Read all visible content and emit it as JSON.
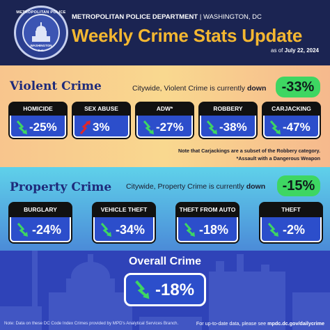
{
  "header": {
    "badge_top": "METROPOLITAN POLICE",
    "badge_mid": "WASHINGTON",
    "badge_bot": "D.C.",
    "department": "METROPOLITAN POLICE DEPARTMENT",
    "separator": "|",
    "city": "WASHINGTON, DC",
    "title": "Weekly Crime Stats Update",
    "as_of_prefix": "as of",
    "as_of_date": "July 22, 2024"
  },
  "violent": {
    "title": "Violent Crime",
    "citywide_prefix": "Citywide, Violent Crime is currently",
    "citywide_direction": "down",
    "citywide_change": "-33%",
    "cards": [
      {
        "label": "HOMICIDE",
        "value": "-25%",
        "direction": "down"
      },
      {
        "label": "SEX ABUSE",
        "value": "3%",
        "direction": "up"
      },
      {
        "label": "ADW*",
        "value": "-27%",
        "direction": "down"
      },
      {
        "label": "ROBBERY",
        "value": "-38%",
        "direction": "down"
      },
      {
        "label": "CARJACKING",
        "value": "-47%",
        "direction": "down"
      }
    ],
    "note1": "Note that Carjackings are a subset of the Robbery category.",
    "note2": "*Assault with a Dangerous Weapon"
  },
  "property": {
    "title": "Property Crime",
    "citywide_prefix": "Citywide, Property Crime is currently",
    "citywide_direction": "down",
    "citywide_change": "-15%",
    "cards": [
      {
        "label": "BURGLARY",
        "value": "-24%",
        "direction": "down"
      },
      {
        "label": "VEHICLE THEFT",
        "value": "-34%",
        "direction": "down"
      },
      {
        "label": "THEFT FROM AUTO",
        "value": "-18%",
        "direction": "down"
      },
      {
        "label": "THEFT",
        "value": "-2%",
        "direction": "down"
      }
    ]
  },
  "overall": {
    "title": "Overall Crime",
    "value": "-18%",
    "direction": "down"
  },
  "footer": {
    "note": "Note: Data on these DC Code Index Crimes provided by MPD's Analytical Services Branch.",
    "uptodate_prefix": "For up-to-date data, please see",
    "url": "mpdc.dc.gov/dailycrime"
  },
  "colors": {
    "down_arrow": "#3ed662",
    "up_arrow": "#e0262b",
    "card_blue": "#2c4ecb",
    "title_gold": "#f4b731",
    "section_title": "#1e2a7a"
  },
  "icons": {
    "down": "trend-down-arrow-icon",
    "up": "trend-up-arrow-icon"
  }
}
